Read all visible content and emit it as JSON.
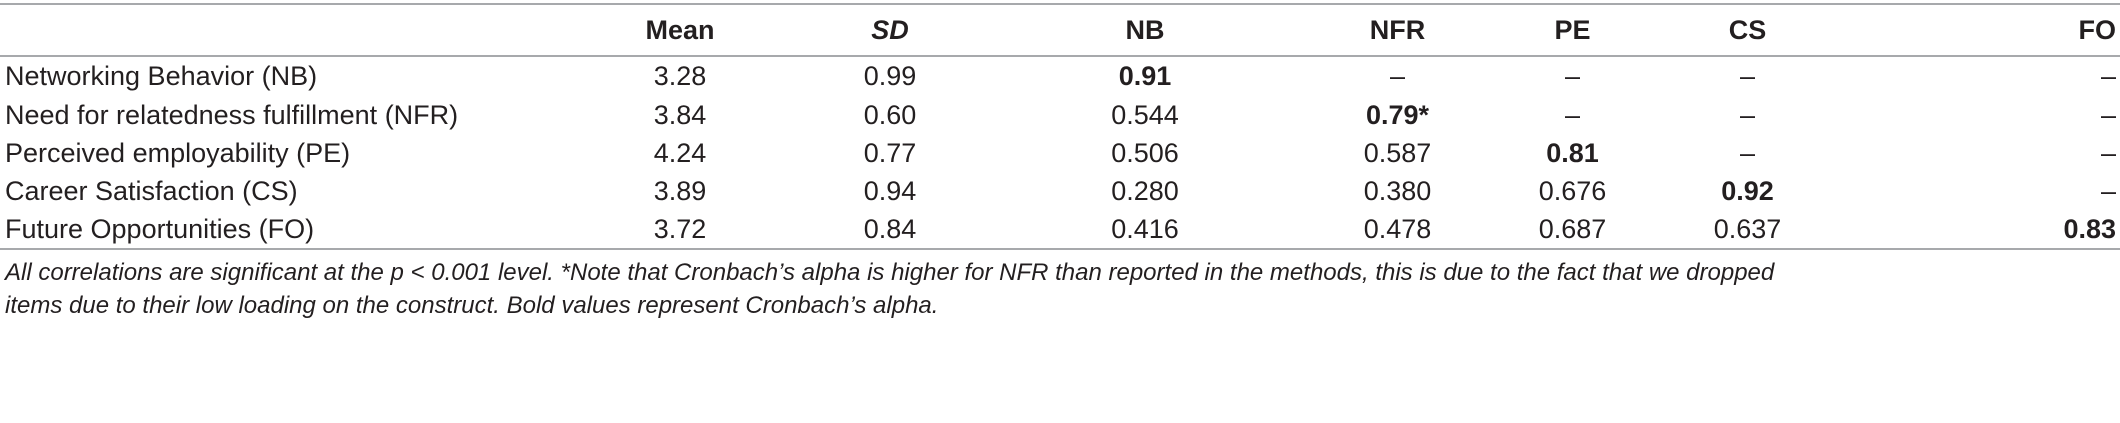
{
  "table": {
    "headers": [
      "",
      "Mean",
      "SD",
      "NB",
      "NFR",
      "PE",
      "CS",
      "FO"
    ],
    "rows": [
      {
        "label": "Networking Behavior (NB)",
        "cells": [
          "3.28",
          "0.99",
          "0.91",
          "–",
          "–",
          "–",
          "–"
        ],
        "bold": [
          2
        ]
      },
      {
        "label": "Need for relatedness fulfillment (NFR)",
        "cells": [
          "3.84",
          "0.60",
          "0.544",
          "0.79*",
          "–",
          "–",
          "–"
        ],
        "bold": [
          3
        ]
      },
      {
        "label": "Perceived employability (PE)",
        "cells": [
          "4.24",
          "0.77",
          "0.506",
          "0.587",
          "0.81",
          "–",
          "–"
        ],
        "bold": [
          4
        ]
      },
      {
        "label": "Career Satisfaction (CS)",
        "cells": [
          "3.89",
          "0.94",
          "0.280",
          "0.380",
          "0.676",
          "0.92",
          "–"
        ],
        "bold": [
          5
        ]
      },
      {
        "label": "Future Opportunities (FO)",
        "cells": [
          "3.72",
          "0.84",
          "0.416",
          "0.478",
          "0.687",
          "0.637",
          "0.83"
        ],
        "bold": [
          6
        ]
      }
    ]
  },
  "note": {
    "line1": "All correlations are significant at the p < 0.001 level. *Note that Cronbach’s alpha is higher for NFR than reported in the methods, this is due to the fact that we dropped",
    "line2": "items due to their low loading on the construct. Bold values represent Cronbach’s alpha."
  }
}
